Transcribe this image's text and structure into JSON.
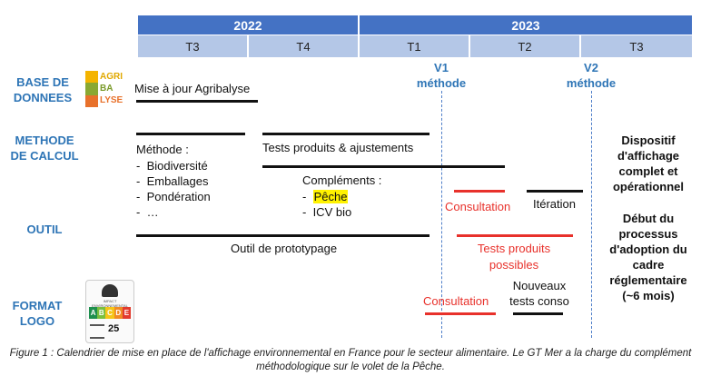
{
  "years": [
    {
      "label": "2022"
    },
    {
      "label": "2023"
    }
  ],
  "quarters": [
    "T3",
    "T4",
    "T1",
    "T2",
    "T3"
  ],
  "rows": {
    "base": "BASE DE DONNEES",
    "methode": "METHODE DE CALCUL",
    "outil": "OUTIL",
    "format": "FORMAT LOGO"
  },
  "logos": {
    "agribalyse_text": [
      "AGRI",
      "BA",
      "LYSE"
    ],
    "agribalyse_colors": [
      "#f4b400",
      "#8aa832",
      "#e8712b"
    ],
    "ecoscore_title": "IMPACT ENVIRONNEMENTAL",
    "ecoscore_letters": [
      "A",
      "B",
      "C",
      "D",
      "E"
    ],
    "ecoscore_colors": [
      "#1e8f4e",
      "#7bbf3e",
      "#f5c518",
      "#f08a24",
      "#e23b2e"
    ],
    "ecoscore_value": "25"
  },
  "milestones": {
    "v1": "V1 méthode",
    "v2": "V2 méthode"
  },
  "items": {
    "agribalyse": "Mise à jour Agribalyse",
    "methode_title": "Méthode :",
    "methode_list": [
      "Biodiversité",
      "Emballages",
      "Pondération",
      "…"
    ],
    "tests_produits": "Tests produits & ajustements",
    "complements_title": "Compléments :",
    "complements_list": [
      "Pêche",
      "ICV bio"
    ],
    "consultation_1": "Consultation",
    "iteration": "Itération",
    "outil_proto": "Outil de prototypage",
    "tests_possibles": "Tests produits possibles",
    "consultation_2": "Consultation",
    "nouveaux_tests": "Nouveaux tests conso"
  },
  "side_note": {
    "part1": "Dispositif d'affichage complet et opérationnel",
    "part2": "Début du processus d'adoption du cadre réglementaire (~6 mois)"
  },
  "caption": "Figure 1 : Calendrier de mise en place de l'affichage environnemental en France pour le secteur alimentaire. Le GT Mer a la charge du complément méthodologique sur le volet de la Pêche."
}
